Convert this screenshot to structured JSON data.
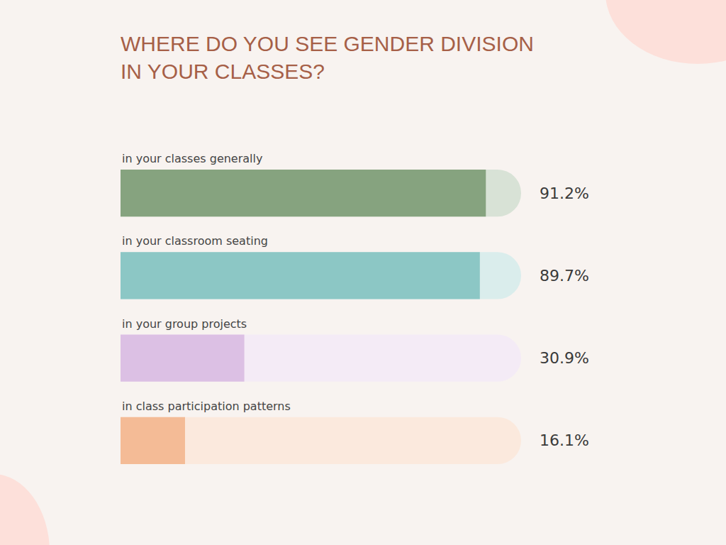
{
  "chart_data": {
    "type": "bar",
    "title": "WHERE DO YOU SEE GENDER DIVISION IN YOUR CLASSES?",
    "orientation": "horizontal",
    "categories": [
      "in your classes generally",
      "in your classroom seating",
      "in your group projects",
      "in class participation patterns"
    ],
    "values": [
      91.2,
      89.7,
      30.9,
      16.1
    ],
    "value_labels": [
      "91.2%",
      "89.7%",
      "30.9%",
      "16.1%"
    ],
    "colors": [
      "#86a37f",
      "#8cc7c5",
      "#dcc0e4",
      "#f4bb96"
    ],
    "xlim": [
      0,
      100
    ],
    "data_labels": true,
    "tick_labels": false,
    "grid": false
  }
}
